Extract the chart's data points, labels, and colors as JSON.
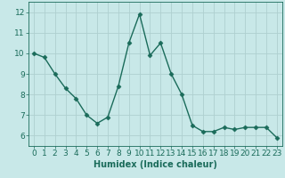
{
  "x": [
    0,
    1,
    2,
    3,
    4,
    5,
    6,
    7,
    8,
    9,
    10,
    11,
    12,
    13,
    14,
    15,
    16,
    17,
    18,
    19,
    20,
    21,
    22,
    23
  ],
  "y": [
    10.0,
    9.8,
    9.0,
    8.3,
    7.8,
    7.0,
    6.6,
    6.9,
    8.4,
    10.5,
    11.9,
    9.9,
    10.5,
    9.0,
    8.0,
    6.5,
    6.2,
    6.2,
    6.4,
    6.3,
    6.4,
    6.4,
    6.4,
    5.9
  ],
  "xlabel": "Humidex (Indice chaleur)",
  "ylim": [
    5.5,
    12.5
  ],
  "xlim": [
    -0.5,
    23.5
  ],
  "yticks": [
    6,
    7,
    8,
    9,
    10,
    11,
    12
  ],
  "xticks": [
    0,
    1,
    2,
    3,
    4,
    5,
    6,
    7,
    8,
    9,
    10,
    11,
    12,
    13,
    14,
    15,
    16,
    17,
    18,
    19,
    20,
    21,
    22,
    23
  ],
  "line_color": "#1a6b5a",
  "marker": "D",
  "marker_size": 2.5,
  "bg_color": "#c8e8e8",
  "grid_color": "#aed0d0",
  "tick_color": "#1a6b5a",
  "label_color": "#1a6b5a",
  "xlabel_fontsize": 7,
  "tick_fontsize": 6.5,
  "linewidth": 1.0
}
